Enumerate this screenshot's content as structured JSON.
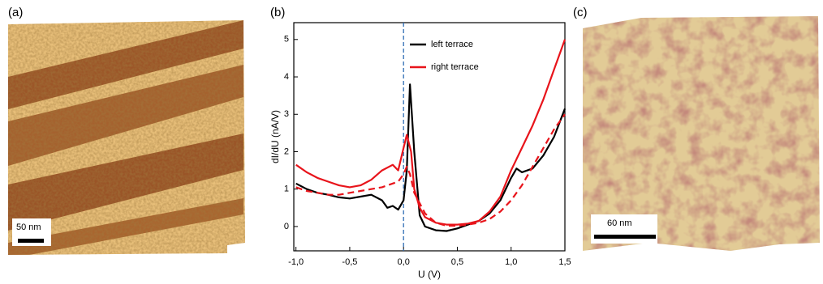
{
  "panels": [
    {
      "label": "(a)",
      "scale_bar": "50 nm"
    },
    {
      "label": "(b)"
    },
    {
      "label": "(c)",
      "scale_bar": "60 nm"
    }
  ],
  "chart_data": {
    "type": "line",
    "x_label": "U (V)",
    "y_label": "dI/dU (nA/V)",
    "xlim": [
      -1.02,
      1.5
    ],
    "ylim": [
      -0.65,
      5.45
    ],
    "xticks": [
      {
        "value": -1.0,
        "label": "-1,0"
      },
      {
        "value": -0.5,
        "label": "-0,5"
      },
      {
        "value": 0.0,
        "label": "0,0"
      },
      {
        "value": 0.5,
        "label": "0,5"
      },
      {
        "value": 1.0,
        "label": "1,0"
      },
      {
        "value": 1.5,
        "label": "1,5"
      }
    ],
    "yticks": [
      0,
      1,
      2,
      3,
      4,
      5
    ],
    "vline": {
      "x": 0,
      "color": "#2e6db4"
    },
    "series": [
      {
        "name": "left terrace",
        "color": "#000000",
        "x": [
          -1.0,
          -0.9,
          -0.8,
          -0.7,
          -0.6,
          -0.5,
          -0.4,
          -0.3,
          -0.2,
          -0.15,
          -0.1,
          -0.05,
          0.0,
          0.03,
          0.06,
          0.1,
          0.15,
          0.2,
          0.3,
          0.4,
          0.5,
          0.6,
          0.7,
          0.8,
          0.9,
          1.0,
          1.05,
          1.1,
          1.2,
          1.3,
          1.4,
          1.5
        ],
        "values": [
          1.15,
          1.0,
          0.9,
          0.85,
          0.78,
          0.75,
          0.8,
          0.85,
          0.7,
          0.5,
          0.55,
          0.45,
          0.7,
          1.5,
          3.8,
          2.0,
          0.3,
          0.0,
          -0.1,
          -0.12,
          -0.05,
          0.05,
          0.15,
          0.35,
          0.7,
          1.3,
          1.55,
          1.45,
          1.55,
          1.9,
          2.4,
          3.15
        ]
      },
      {
        "name": "right terrace",
        "color": "#e8141b",
        "x": [
          -1.0,
          -0.9,
          -0.8,
          -0.7,
          -0.6,
          -0.5,
          -0.4,
          -0.3,
          -0.2,
          -0.1,
          -0.05,
          0.0,
          0.03,
          0.07,
          0.1,
          0.15,
          0.2,
          0.3,
          0.4,
          0.5,
          0.6,
          0.7,
          0.8,
          0.9,
          1.0,
          1.1,
          1.2,
          1.3,
          1.4,
          1.5
        ],
        "values": [
          1.65,
          1.45,
          1.3,
          1.2,
          1.1,
          1.05,
          1.1,
          1.25,
          1.5,
          1.65,
          1.5,
          2.1,
          2.45,
          2.0,
          1.0,
          0.5,
          0.25,
          0.1,
          0.05,
          0.05,
          0.08,
          0.15,
          0.4,
          0.8,
          1.5,
          2.1,
          2.7,
          3.4,
          4.2,
          5.0
        ]
      },
      {
        "color": "#e8141b",
        "dashed": true,
        "x": [
          -1.0,
          -0.9,
          -0.8,
          -0.7,
          -0.6,
          -0.5,
          -0.4,
          -0.3,
          -0.2,
          -0.1,
          -0.05,
          0.0,
          0.03,
          0.06,
          0.1,
          0.2,
          0.3,
          0.4,
          0.5,
          0.6,
          0.7,
          0.8,
          0.9,
          1.0,
          1.1,
          1.2,
          1.3,
          1.4,
          1.5
        ],
        "values": [
          1.05,
          0.95,
          0.9,
          0.85,
          0.85,
          0.9,
          0.95,
          1.0,
          1.05,
          1.15,
          1.2,
          1.4,
          1.6,
          1.4,
          0.9,
          0.35,
          0.1,
          0.02,
          0.02,
          0.05,
          0.1,
          0.2,
          0.4,
          0.7,
          1.1,
          1.6,
          2.1,
          2.6,
          3.0
        ]
      }
    ]
  }
}
